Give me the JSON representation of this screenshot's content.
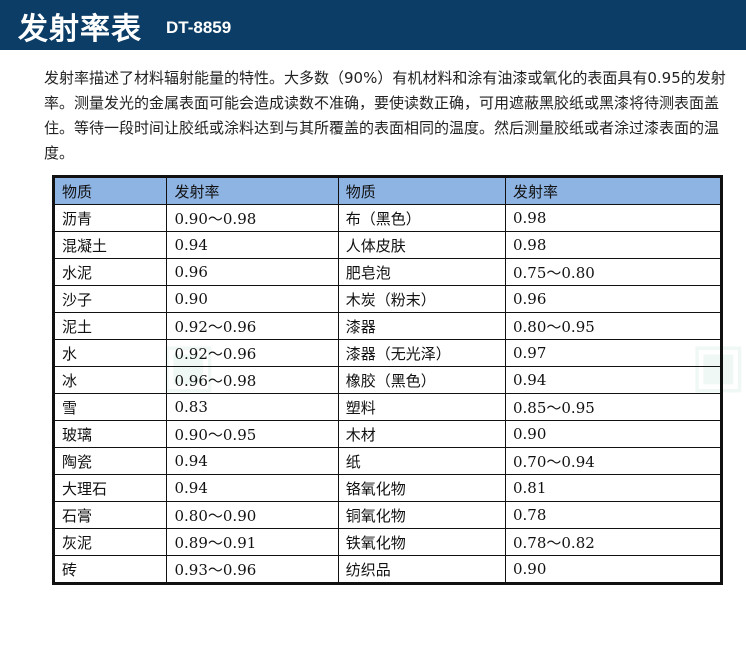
{
  "header": {
    "title": "发射率表",
    "model": "DT-8859"
  },
  "intro": "发射率描述了材料辐射能量的特性。大多数（90%）有机材料和涂有油漆或氧化的表面具有0.95的发射率。测量发光的金属表面可能会造成读数不准确，要使读数正确，可用遮蔽黑胶纸或黑漆将待测表面盖住。等待一段时间让胶纸或涂料达到与其所覆盖的表面相同的温度。然后测量胶纸或者涂过漆表面的温度。",
  "table": {
    "headers": [
      "物质",
      "发射率",
      "物质",
      "发射率"
    ],
    "rows": [
      [
        "沥青",
        "0.90～0.98",
        "布（黑色）",
        "0.98"
      ],
      [
        "混凝土",
        "0.94",
        "人体皮肤",
        "0.98"
      ],
      [
        "水泥",
        "0.96",
        "肥皂泡",
        "0.75～0.80"
      ],
      [
        "沙子",
        "0.90",
        "木炭（粉末）",
        "0.96"
      ],
      [
        "泥土",
        "0.92～0.96",
        "漆器",
        "0.80～0.95"
      ],
      [
        "水",
        "0.92～0.96",
        "漆器（无光泽）",
        "0.97"
      ],
      [
        "冰",
        "0.96～0.98",
        "橡胶（黑色）",
        "0.94"
      ],
      [
        "雪",
        "0.83",
        "塑料",
        "0.85～0.95"
      ],
      [
        "玻璃",
        "0.90～0.95",
        "木材",
        "0.90"
      ],
      [
        "陶瓷",
        "0.94",
        "纸",
        "0.70～0.94"
      ],
      [
        "大理石",
        "0.94",
        "铬氧化物",
        "0.81"
      ],
      [
        "石膏",
        "0.80～0.90",
        "铜氧化物",
        "0.78"
      ],
      [
        "灰泥",
        "0.89～0.91",
        "铁氧化物",
        "0.78～0.82"
      ],
      [
        "砖",
        "0.93～0.96",
        "纺织品",
        "0.90"
      ]
    ]
  }
}
